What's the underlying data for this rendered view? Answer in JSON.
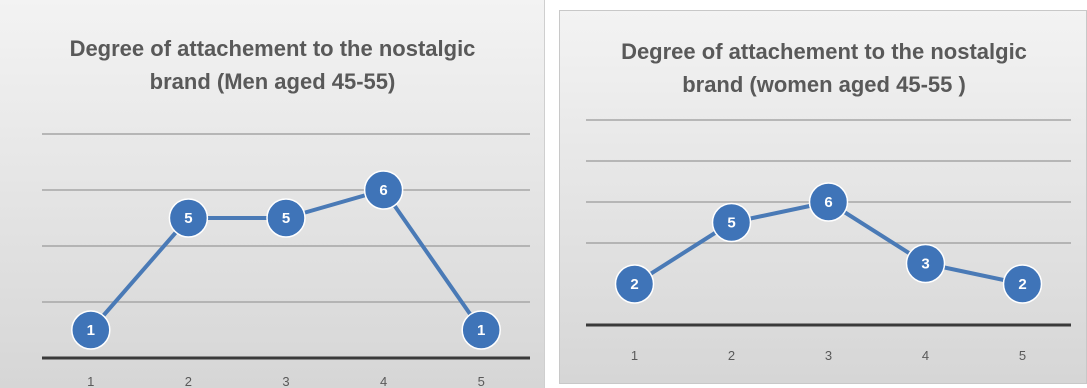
{
  "chart_data": [
    {
      "type": "line",
      "title": "Degree of attachement to the nostalgic brand (Men aged 45-55)",
      "xlabel": "",
      "ylabel": "",
      "categories": [
        "1",
        "2",
        "3",
        "4",
        "5"
      ],
      "values": [
        1,
        5,
        5,
        6,
        1
      ],
      "ylim": [
        0,
        8
      ],
      "grid": true,
      "legend": "none",
      "data_labels": true,
      "series_color": "#4a7ab6",
      "marker_color": "#3f74b8"
    },
    {
      "type": "line",
      "title": "Degree of attachement to the nostalgic brand (women aged 45-55 )",
      "xlabel": "",
      "ylabel": "",
      "categories": [
        "1",
        "2",
        "3",
        "4",
        "5"
      ],
      "values": [
        2,
        5,
        6,
        3,
        2
      ],
      "ylim": [
        0,
        10
      ],
      "grid": true,
      "legend": "none",
      "data_labels": true,
      "series_color": "#4a7ab6",
      "marker_color": "#3f74b8"
    }
  ]
}
